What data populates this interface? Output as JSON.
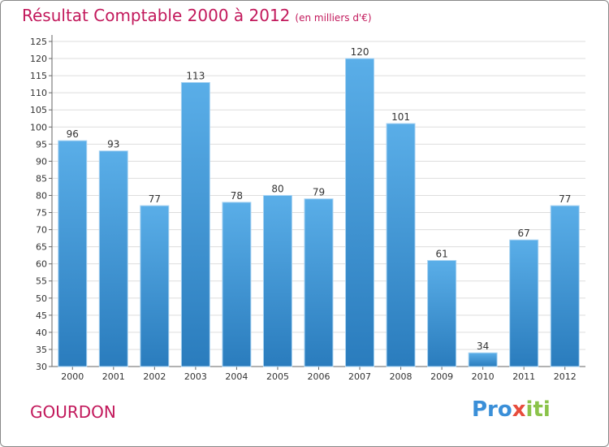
{
  "title": "Résultat Comptable 2000 à 2012",
  "unit": "(en milliers d'€)",
  "city": "GOURDON",
  "logo": {
    "p1": "Pro",
    "p2": "x",
    "p3": "iti"
  },
  "colors": {
    "bar_top": "#5aaee8",
    "bar_bottom": "#2a7cbd",
    "title": "#c2185b"
  },
  "chart_data": {
    "type": "bar",
    "title": "Résultat Comptable 2000 à 2012",
    "xlabel": "",
    "ylabel": "",
    "categories": [
      "2000",
      "2001",
      "2002",
      "2003",
      "2004",
      "2005",
      "2006",
      "2007",
      "2008",
      "2009",
      "2010",
      "2011",
      "2012"
    ],
    "values": [
      96,
      93,
      77,
      113,
      78,
      80,
      79,
      120,
      101,
      61,
      34,
      67,
      77
    ],
    "ylim": [
      30,
      125
    ],
    "yticks": [
      30,
      35,
      40,
      45,
      50,
      55,
      60,
      65,
      70,
      75,
      80,
      85,
      90,
      95,
      100,
      105,
      110,
      115,
      120,
      125
    ],
    "grid": true
  }
}
